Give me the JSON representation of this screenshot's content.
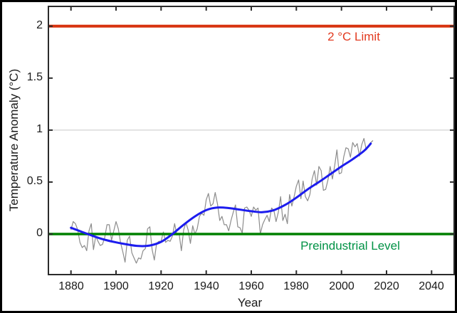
{
  "figure": {
    "background": "#ffffff",
    "outer_border_color": "#000000",
    "axis_color": "#2b2b2b",
    "text_color": "#1a1a1a"
  },
  "chart_data": {
    "type": "line",
    "title": "",
    "xlabel": "Year",
    "ylabel": "Temperature Anomaly (°C)",
    "xlim": [
      1870,
      2050
    ],
    "ylim": [
      -0.39,
      2.19
    ],
    "x_ticks": [
      1880,
      1900,
      1920,
      1940,
      1960,
      1980,
      2000,
      2020,
      2040
    ],
    "y_ticks": [
      0,
      0.5,
      1,
      1.5,
      2
    ],
    "y_tick_labels": [
      "0",
      "0.5",
      "1",
      "1.5",
      "2"
    ],
    "grid": {
      "y_values": [
        1
      ],
      "color": "#c8c8c8"
    },
    "legend": "none",
    "reference_lines": [
      {
        "id": "two-degree-limit",
        "value": 2,
        "line_color": "#d8330f",
        "line_width": 4,
        "label": "2 °C Limit",
        "label_color": "#e23a20"
      },
      {
        "id": "preindustrial-level",
        "value": 0,
        "line_color": "#008000",
        "line_width": 3.5,
        "label": "Preindustrial Level",
        "label_color": "#009245"
      }
    ],
    "series": [
      {
        "name": "annual-temperature-anomaly",
        "style": "jagged",
        "color": "#8c8c8c",
        "width": 1.2,
        "x_start": 1880,
        "x_step": 1,
        "values": [
          0.04,
          0.12,
          0.1,
          0.04,
          -0.08,
          -0.13,
          -0.11,
          -0.16,
          0.03,
          0.1,
          -0.15,
          -0.02,
          -0.07,
          -0.11,
          -0.1,
          -0.03,
          0.09,
          0.09,
          -0.06,
          0.03,
          0.12,
          0.05,
          -0.08,
          -0.17,
          -0.27,
          -0.06,
          -0.02,
          -0.18,
          -0.23,
          -0.28,
          -0.23,
          -0.24,
          -0.16,
          -0.14,
          0.05,
          0.07,
          -0.15,
          -0.25,
          -0.09,
          -0.07,
          -0.07,
          0.02,
          -0.08,
          -0.06,
          -0.07,
          -0.02,
          0.1,
          -0.01,
          0.0,
          -0.16,
          0.04,
          0.11,
          0.04,
          -0.09,
          0.08,
          0.0,
          0.05,
          0.17,
          0.2,
          0.18,
          0.33,
          0.39,
          0.27,
          0.29,
          0.4,
          0.29,
          0.13,
          0.17,
          0.09,
          0.09,
          0.03,
          0.13,
          0.21,
          0.28,
          0.07,
          0.06,
          0.01,
          0.25,
          0.26,
          0.23,
          0.17,
          0.26,
          0.23,
          0.25,
          0.0,
          0.09,
          0.14,
          0.18,
          0.12,
          0.25,
          0.23,
          0.12,
          0.21,
          0.36,
          0.13,
          0.19,
          0.1,
          0.38,
          0.27,
          0.36,
          0.46,
          0.52,
          0.34,
          0.51,
          0.36,
          0.32,
          0.38,
          0.53,
          0.61,
          0.47,
          0.65,
          0.61,
          0.42,
          0.43,
          0.52,
          0.65,
          0.53,
          0.66,
          0.81,
          0.58,
          0.59,
          0.74,
          0.83,
          0.82,
          0.74,
          0.88,
          0.84,
          0.87,
          0.75,
          0.86,
          0.92,
          0.81,
          0.85,
          0.88,
          0.9
        ]
      },
      {
        "name": "smoothed-trend",
        "style": "smooth",
        "color": "#1c1cee",
        "width": 3,
        "points": [
          [
            1880,
            0.06
          ],
          [
            1885,
            0.02
          ],
          [
            1890,
            -0.02
          ],
          [
            1895,
            -0.055
          ],
          [
            1900,
            -0.08
          ],
          [
            1905,
            -0.1
          ],
          [
            1910,
            -0.115
          ],
          [
            1915,
            -0.11
          ],
          [
            1920,
            -0.075
          ],
          [
            1925,
            0.0
          ],
          [
            1930,
            0.09
          ],
          [
            1935,
            0.17
          ],
          [
            1940,
            0.23
          ],
          [
            1945,
            0.255
          ],
          [
            1950,
            0.25
          ],
          [
            1955,
            0.235
          ],
          [
            1960,
            0.22
          ],
          [
            1965,
            0.21
          ],
          [
            1970,
            0.23
          ],
          [
            1975,
            0.28
          ],
          [
            1980,
            0.35
          ],
          [
            1985,
            0.43
          ],
          [
            1990,
            0.5
          ],
          [
            1995,
            0.575
          ],
          [
            2000,
            0.65
          ],
          [
            2005,
            0.72
          ],
          [
            2010,
            0.8
          ],
          [
            2013,
            0.87
          ]
        ]
      }
    ]
  }
}
